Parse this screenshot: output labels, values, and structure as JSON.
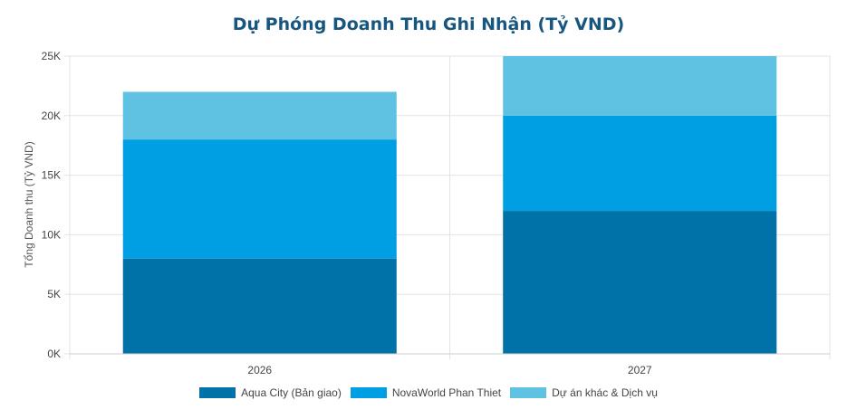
{
  "chart_data": {
    "type": "bar",
    "stacked": true,
    "title": "Dự Phóng Doanh Thu Ghi Nhận (Tỷ VND)",
    "xlabel": "",
    "ylabel": "Tổng Doanh thu (Tỷ VND)",
    "categories": [
      "2026",
      "2027"
    ],
    "ylim": [
      0,
      25000
    ],
    "yticks": [
      0,
      5000,
      10000,
      15000,
      20000,
      25000
    ],
    "ytick_labels": [
      "0K",
      "5K",
      "10K",
      "15K",
      "20K",
      "25K"
    ],
    "grid": true,
    "legend_position": "bottom",
    "series": [
      {
        "name": "Aqua City (Bản giao)",
        "values": [
          8000,
          12000
        ],
        "color": "#0072a8"
      },
      {
        "name": "NovaWorld Phan Thiet",
        "values": [
          10000,
          8000
        ],
        "color": "#009fe3"
      },
      {
        "name": "Dự án khác & Dịch vụ",
        "values": [
          4000,
          5000
        ],
        "color": "#5fc2e3"
      }
    ]
  }
}
